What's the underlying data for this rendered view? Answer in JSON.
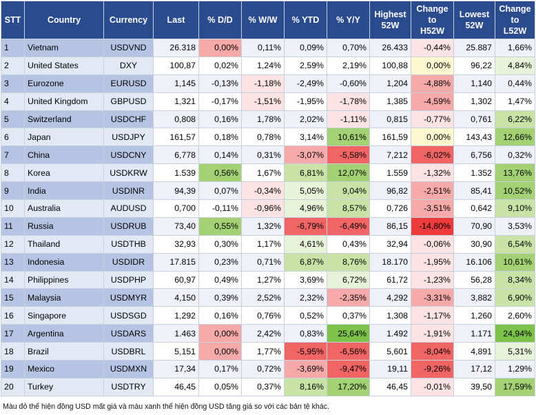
{
  "chart_data": {
    "type": "table",
    "columns": [
      "STT",
      "Country",
      "Currency",
      "Last",
      "% D/D",
      "% W/W",
      "% YTD",
      "% Y/Y",
      "Highest\n52W",
      "Change\nto\nH52W",
      "Lowest\n52W",
      "Change\nto\nL52W"
    ],
    "rows": [
      [
        "1",
        "Vietnam",
        "USDVND",
        "26.318",
        "0,00%",
        "0,11%",
        "0,09%",
        "0,70%",
        "26.433",
        "-0,44%",
        "25.887",
        "1,66%"
      ],
      [
        "2",
        "United States",
        "DXY",
        "100,87",
        "0,02%",
        "1,24%",
        "2,59%",
        "2,19%",
        "100,88",
        "0,00%",
        "96,22",
        "4,84%"
      ],
      [
        "3",
        "Eurozone",
        "EURUSD",
        "1,145",
        "-0,13%",
        "-1,18%",
        "-2,49%",
        "-0,60%",
        "1,204",
        "-4,88%",
        "1,140",
        "0,44%"
      ],
      [
        "4",
        "United Kingdom",
        "GBPUSD",
        "1,321",
        "-0,17%",
        "-1,51%",
        "-1,95%",
        "-1,78%",
        "1,385",
        "-4,59%",
        "1,302",
        "1,47%"
      ],
      [
        "5",
        "Switzerland",
        "USDCHF",
        "0,808",
        "0,16%",
        "1,78%",
        "2,02%",
        "-1,11%",
        "0,815",
        "-0,77%",
        "0,761",
        "6,22%"
      ],
      [
        "6",
        "Japan",
        "USDJPY",
        "161,57",
        "0,18%",
        "0,78%",
        "3,14%",
        "10,61%",
        "161,59",
        "0,00%",
        "143,43",
        "12,66%"
      ],
      [
        "7",
        "China",
        "USDCNY",
        "6,778",
        "0,14%",
        "0,31%",
        "-3,07%",
        "-5,58%",
        "7,212",
        "-6,02%",
        "6,756",
        "0,32%"
      ],
      [
        "8",
        "Korea",
        "USDKRW",
        "1.539",
        "0,56%",
        "1,67%",
        "6,81%",
        "12,07%",
        "1.559",
        "-1,32%",
        "1.352",
        "13,76%"
      ],
      [
        "9",
        "India",
        "USDINR",
        "94,39",
        "0,07%",
        "-0,34%",
        "5,05%",
        "9,04%",
        "96,82",
        "-2,51%",
        "85,41",
        "10,52%"
      ],
      [
        "10",
        "Australia",
        "AUDUSD",
        "0,700",
        "-0,11%",
        "-0,96%",
        "4,96%",
        "8,57%",
        "0,726",
        "-3,51%",
        "0,642",
        "9,10%"
      ],
      [
        "11",
        "Russia",
        "USDRUB",
        "73,40",
        "0,55%",
        "1,32%",
        "-6,79%",
        "-6,49%",
        "86,15",
        "-14,80%",
        "70,90",
        "3,53%"
      ],
      [
        "12",
        "Thailand",
        "USDTHB",
        "32,93",
        "0,30%",
        "1,17%",
        "4,61%",
        "0,43%",
        "32,94",
        "-0,06%",
        "30,90",
        "6,54%"
      ],
      [
        "13",
        "Indonesia",
        "USDIDR",
        "17.815",
        "0,23%",
        "0,71%",
        "6,87%",
        "8,76%",
        "18.170",
        "-1,95%",
        "16.106",
        "10,61%"
      ],
      [
        "14",
        "Philippines",
        "USDPHP",
        "60,97",
        "0,49%",
        "1,27%",
        "3,69%",
        "6,72%",
        "61,72",
        "-1,23%",
        "56,28",
        "8,34%"
      ],
      [
        "15",
        "Malaysia",
        "USDMYR",
        "4,150",
        "0,39%",
        "2,52%",
        "2,32%",
        "-2,35%",
        "4,292",
        "-3,31%",
        "3,882",
        "6,90%"
      ],
      [
        "16",
        "Singapore",
        "USDSGD",
        "1,292",
        "0,16%",
        "0,76%",
        "0,52%",
        "0,37%",
        "1,308",
        "-1,17%",
        "1,260",
        "2,60%"
      ],
      [
        "17",
        "Argentina",
        "USDARS",
        "1.463",
        "0,00%",
        "2,42%",
        "0,83%",
        "25,64%",
        "1.492",
        "-1,91%",
        "1.171",
        "24,94%"
      ],
      [
        "18",
        "Brazil",
        "USDBRL",
        "5,151",
        "0,00%",
        "1,77%",
        "-5,95%",
        "-6,56%",
        "5,601",
        "-8,04%",
        "4,891",
        "5,31%"
      ],
      [
        "19",
        "Mexico",
        "USDMXN",
        "17,34",
        "0,17%",
        "0,72%",
        "-3,69%",
        "-9,47%",
        "19,11",
        "-9,26%",
        "17,12",
        "1,29%"
      ],
      [
        "20",
        "Turkey",
        "USDTRY",
        "46,45",
        "0,05%",
        "0,37%",
        "8,16%",
        "17,20%",
        "46,45",
        "-0,01%",
        "39,50",
        "17,59%"
      ]
    ]
  },
  "colors": {
    "header_bg": "#2a4b8d",
    "header_text": "#ffffff",
    "row_label_odd": "#b6c4e4",
    "row_label_even": "#e2e8f4",
    "row_num_odd": "#eef1f8",
    "row_num_even": "#ffffff",
    "negative_scale": [
      "#fde3e3",
      "#f6a9a9",
      "#f26565",
      "#ee3b3b"
    ],
    "positive_scale": [
      "#e8f2d8",
      "#c9e3a6",
      "#a4d174",
      "#7dc24a"
    ],
    "neutral_yellow": "#fdf8d0"
  },
  "footnote": "Màu đỏ thể hiện đồng USD mất giá và màu xanh thể hiện đồng USD tăng giá so với các bản tệ khác."
}
